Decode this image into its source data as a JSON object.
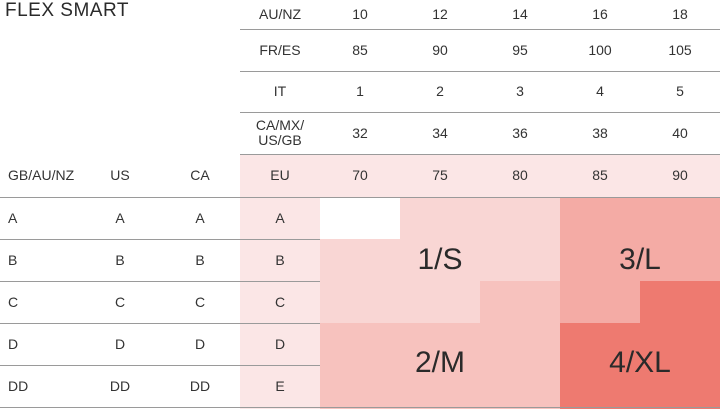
{
  "title": "FLEX SMART",
  "band_rows": [
    {
      "label": "AU/NZ",
      "values": [
        "10",
        "12",
        "14",
        "16",
        "18"
      ]
    },
    {
      "label": "FR/ES",
      "values": [
        "85",
        "90",
        "95",
        "100",
        "105"
      ]
    },
    {
      "label": "IT",
      "values": [
        "1",
        "2",
        "3",
        "4",
        "5"
      ]
    },
    {
      "label": "CA/MX/\nUS/GB",
      "values": [
        "32",
        "34",
        "36",
        "38",
        "40"
      ]
    },
    {
      "label": "EU",
      "values": [
        "70",
        "75",
        "80",
        "85",
        "90"
      ]
    }
  ],
  "cup_headers": [
    "GB/AU/NZ",
    "US",
    "CA"
  ],
  "cup_rows": [
    [
      "A",
      "A",
      "A",
      "A"
    ],
    [
      "B",
      "B",
      "B",
      "B"
    ],
    [
      "C",
      "C",
      "C",
      "C"
    ],
    [
      "D",
      "D",
      "D",
      "D"
    ],
    [
      "DD",
      "DD",
      "DD",
      "E"
    ]
  ],
  "sizes": {
    "s": "1/S",
    "l": "3/L",
    "m": "2/M",
    "xl": "4/XL"
  },
  "colors": {
    "eu_column": "#fbe6e6",
    "size_s": "#f9d6d4",
    "size_mid": "#f7c2be",
    "size_l": "#f4aba5",
    "size_xl": "#ee7a70",
    "line": "#9a9a9a"
  }
}
